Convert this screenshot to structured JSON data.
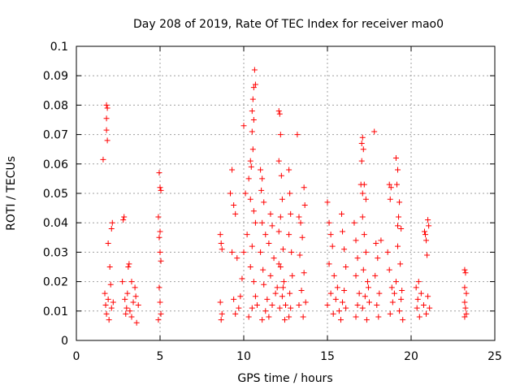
{
  "chart_data": {
    "type": "scatter",
    "title": "Day 208 of 2019, Rate Of TEC Index for receiver mao0",
    "xlabel": "GPS time / hours",
    "ylabel": "ROTI / TECUs",
    "xlim": [
      0,
      25
    ],
    "ylim": [
      0,
      0.1
    ],
    "x_ticks": [
      "0",
      "5",
      "10",
      "15",
      "20",
      "25"
    ],
    "y_ticks": [
      "0",
      "0.01",
      "0.02",
      "0.03",
      "0.04",
      "0.05",
      "0.06",
      "0.07",
      "0.08",
      "0.09",
      "0.1"
    ],
    "grid": true,
    "marker": "+",
    "marker_color": "#ff0000",
    "series": [
      {
        "points": [
          [
            1.6,
            0.0615
          ],
          [
            1.8,
            0.08
          ],
          [
            1.85,
            0.079
          ],
          [
            1.8,
            0.0755
          ],
          [
            1.8,
            0.0715
          ],
          [
            1.85,
            0.068
          ],
          [
            1.7,
            0.016
          ],
          [
            1.75,
            0.012
          ],
          [
            1.8,
            0.009
          ],
          [
            1.9,
            0.014
          ],
          [
            2.0,
            0.025
          ],
          [
            2.05,
            0.019
          ],
          [
            1.9,
            0.033
          ],
          [
            2.1,
            0.038
          ],
          [
            2.15,
            0.04
          ],
          [
            1.95,
            0.007
          ],
          [
            2.1,
            0.011
          ],
          [
            2.2,
            0.013
          ],
          [
            2.8,
            0.041
          ],
          [
            2.85,
            0.042
          ],
          [
            2.75,
            0.02
          ],
          [
            2.9,
            0.014
          ],
          [
            3.0,
            0.011
          ],
          [
            3.05,
            0.016
          ],
          [
            3.1,
            0.025
          ],
          [
            3.15,
            0.026
          ],
          [
            3.2,
            0.01
          ],
          [
            3.3,
            0.008
          ],
          [
            3.4,
            0.013
          ],
          [
            3.5,
            0.018
          ],
          [
            3.6,
            0.006
          ],
          [
            3.7,
            0.012
          ],
          [
            3.3,
            0.02
          ],
          [
            2.95,
            0.009
          ],
          [
            3.55,
            0.015
          ],
          [
            4.95,
            0.057
          ],
          [
            5.0,
            0.052
          ],
          [
            5.05,
            0.051
          ],
          [
            4.9,
            0.042
          ],
          [
            5.0,
            0.037
          ],
          [
            4.95,
            0.035
          ],
          [
            5.0,
            0.03
          ],
          [
            5.05,
            0.027
          ],
          [
            4.95,
            0.018
          ],
          [
            5.0,
            0.013
          ],
          [
            5.05,
            0.009
          ],
          [
            4.9,
            0.007
          ],
          [
            8.6,
            0.036
          ],
          [
            8.65,
            0.033
          ],
          [
            8.7,
            0.031
          ],
          [
            8.6,
            0.013
          ],
          [
            8.7,
            0.009
          ],
          [
            8.65,
            0.007
          ],
          [
            9.3,
            0.058
          ],
          [
            9.2,
            0.05
          ],
          [
            9.4,
            0.046
          ],
          [
            9.5,
            0.043
          ],
          [
            9.3,
            0.03
          ],
          [
            9.6,
            0.028
          ],
          [
            9.4,
            0.014
          ],
          [
            9.7,
            0.011
          ],
          [
            9.5,
            0.009
          ],
          [
            9.8,
            0.015
          ],
          [
            9.9,
            0.021
          ],
          [
            10.0,
            0.03
          ],
          [
            10.1,
            0.05
          ],
          [
            10.2,
            0.036
          ],
          [
            10.0,
            0.073
          ],
          [
            10.4,
            0.061
          ],
          [
            10.5,
            0.078
          ],
          [
            10.6,
            0.086
          ],
          [
            10.65,
            0.092
          ],
          [
            10.7,
            0.087
          ],
          [
            10.55,
            0.082
          ],
          [
            10.6,
            0.075
          ],
          [
            10.5,
            0.071
          ],
          [
            10.55,
            0.065
          ],
          [
            10.45,
            0.059
          ],
          [
            10.3,
            0.055
          ],
          [
            10.4,
            0.048
          ],
          [
            10.6,
            0.044
          ],
          [
            10.7,
            0.04
          ],
          [
            10.5,
            0.032
          ],
          [
            10.4,
            0.025
          ],
          [
            10.6,
            0.02
          ],
          [
            10.7,
            0.015
          ],
          [
            10.5,
            0.011
          ],
          [
            10.3,
            0.008
          ],
          [
            10.8,
            0.012
          ],
          [
            11.0,
            0.058
          ],
          [
            11.1,
            0.055
          ],
          [
            11.05,
            0.051
          ],
          [
            11.2,
            0.047
          ],
          [
            11.1,
            0.04
          ],
          [
            11.3,
            0.036
          ],
          [
            11.0,
            0.03
          ],
          [
            11.15,
            0.024
          ],
          [
            11.2,
            0.019
          ],
          [
            11.4,
            0.014
          ],
          [
            11.3,
            0.01
          ],
          [
            11.1,
            0.007
          ],
          [
            11.6,
            0.043
          ],
          [
            11.7,
            0.039
          ],
          [
            11.5,
            0.033
          ],
          [
            11.8,
            0.028
          ],
          [
            11.6,
            0.022
          ],
          [
            11.9,
            0.016
          ],
          [
            11.7,
            0.012
          ],
          [
            11.5,
            0.008
          ],
          [
            12.0,
            0.018
          ],
          [
            12.1,
            0.026
          ],
          [
            12.1,
            0.078
          ],
          [
            12.15,
            0.077
          ],
          [
            12.2,
            0.07
          ],
          [
            12.1,
            0.061
          ],
          [
            12.25,
            0.056
          ],
          [
            12.3,
            0.048
          ],
          [
            12.2,
            0.042
          ],
          [
            12.1,
            0.037
          ],
          [
            12.35,
            0.031
          ],
          [
            12.2,
            0.025
          ],
          [
            12.4,
            0.02
          ],
          [
            12.3,
            0.015
          ],
          [
            12.15,
            0.011
          ],
          [
            12.45,
            0.007
          ],
          [
            12.5,
            0.012
          ],
          [
            12.35,
            0.018
          ],
          [
            12.7,
            0.058
          ],
          [
            12.75,
            0.05
          ],
          [
            12.8,
            0.043
          ],
          [
            12.7,
            0.036
          ],
          [
            12.85,
            0.03
          ],
          [
            12.9,
            0.022
          ],
          [
            12.75,
            0.016
          ],
          [
            12.8,
            0.011
          ],
          [
            12.7,
            0.008
          ],
          [
            13.2,
            0.07
          ],
          [
            13.3,
            0.042
          ],
          [
            13.4,
            0.04
          ],
          [
            13.5,
            0.035
          ],
          [
            13.35,
            0.029
          ],
          [
            13.6,
            0.023
          ],
          [
            13.45,
            0.017
          ],
          [
            13.3,
            0.012
          ],
          [
            13.55,
            0.008
          ],
          [
            13.7,
            0.013
          ],
          [
            13.6,
            0.052
          ],
          [
            13.65,
            0.046
          ],
          [
            15.0,
            0.047
          ],
          [
            15.1,
            0.04
          ],
          [
            15.2,
            0.036
          ],
          [
            15.3,
            0.032
          ],
          [
            15.1,
            0.026
          ],
          [
            15.4,
            0.022
          ],
          [
            15.2,
            0.016
          ],
          [
            15.0,
            0.012
          ],
          [
            15.35,
            0.009
          ],
          [
            15.5,
            0.014
          ],
          [
            15.6,
            0.018
          ],
          [
            15.7,
            0.01
          ],
          [
            15.8,
            0.007
          ],
          [
            15.9,
            0.013
          ],
          [
            16.0,
            0.017
          ],
          [
            16.1,
            0.011
          ],
          [
            15.85,
            0.043
          ],
          [
            15.9,
            0.037
          ],
          [
            16.0,
            0.031
          ],
          [
            16.1,
            0.025
          ],
          [
            16.6,
            0.04
          ],
          [
            16.7,
            0.034
          ],
          [
            16.8,
            0.028
          ],
          [
            16.7,
            0.022
          ],
          [
            16.9,
            0.016
          ],
          [
            16.8,
            0.012
          ],
          [
            16.7,
            0.008
          ],
          [
            17.05,
            0.067
          ],
          [
            17.1,
            0.069
          ],
          [
            17.15,
            0.065
          ],
          [
            17.05,
            0.061
          ],
          [
            17.0,
            0.053
          ],
          [
            17.1,
            0.05
          ],
          [
            17.2,
            0.053
          ],
          [
            17.3,
            0.048
          ],
          [
            17.1,
            0.042
          ],
          [
            17.2,
            0.036
          ],
          [
            17.3,
            0.03
          ],
          [
            17.15,
            0.024
          ],
          [
            17.4,
            0.02
          ],
          [
            17.25,
            0.015
          ],
          [
            17.1,
            0.011
          ],
          [
            17.35,
            0.007
          ],
          [
            17.5,
            0.013
          ],
          [
            17.45,
            0.018
          ],
          [
            17.8,
            0.071
          ],
          [
            17.9,
            0.033
          ],
          [
            18.0,
            0.028
          ],
          [
            17.85,
            0.022
          ],
          [
            18.1,
            0.016
          ],
          [
            17.95,
            0.012
          ],
          [
            18.05,
            0.008
          ],
          [
            18.2,
            0.034
          ],
          [
            18.7,
            0.053
          ],
          [
            18.8,
            0.052
          ],
          [
            18.75,
            0.048
          ],
          [
            18.6,
            0.03
          ],
          [
            18.7,
            0.024
          ],
          [
            18.85,
            0.018
          ],
          [
            18.9,
            0.013
          ],
          [
            18.75,
            0.009
          ],
          [
            19.0,
            0.016
          ],
          [
            19.1,
            0.062
          ],
          [
            19.2,
            0.058
          ],
          [
            19.15,
            0.053
          ],
          [
            19.3,
            0.047
          ],
          [
            19.25,
            0.042
          ],
          [
            19.4,
            0.038
          ],
          [
            19.2,
            0.032
          ],
          [
            19.35,
            0.026
          ],
          [
            19.1,
            0.02
          ],
          [
            19.4,
            0.014
          ],
          [
            19.3,
            0.01
          ],
          [
            19.5,
            0.007
          ],
          [
            19.45,
            0.017
          ],
          [
            19.2,
            0.039
          ],
          [
            20.3,
            0.018
          ],
          [
            20.4,
            0.014
          ],
          [
            20.35,
            0.011
          ],
          [
            20.5,
            0.008
          ],
          [
            20.45,
            0.02
          ],
          [
            20.6,
            0.016
          ],
          [
            20.8,
            0.037
          ],
          [
            20.85,
            0.036
          ],
          [
            20.9,
            0.034
          ],
          [
            21.0,
            0.041
          ],
          [
            21.05,
            0.039
          ],
          [
            20.95,
            0.029
          ],
          [
            20.75,
            0.012
          ],
          [
            20.9,
            0.009
          ],
          [
            21.1,
            0.011
          ],
          [
            21.0,
            0.015
          ],
          [
            23.2,
            0.024
          ],
          [
            23.25,
            0.023
          ],
          [
            23.2,
            0.018
          ],
          [
            23.3,
            0.016
          ],
          [
            23.2,
            0.013
          ],
          [
            23.25,
            0.011
          ],
          [
            23.3,
            0.009
          ],
          [
            23.2,
            0.008
          ]
        ]
      }
    ]
  }
}
